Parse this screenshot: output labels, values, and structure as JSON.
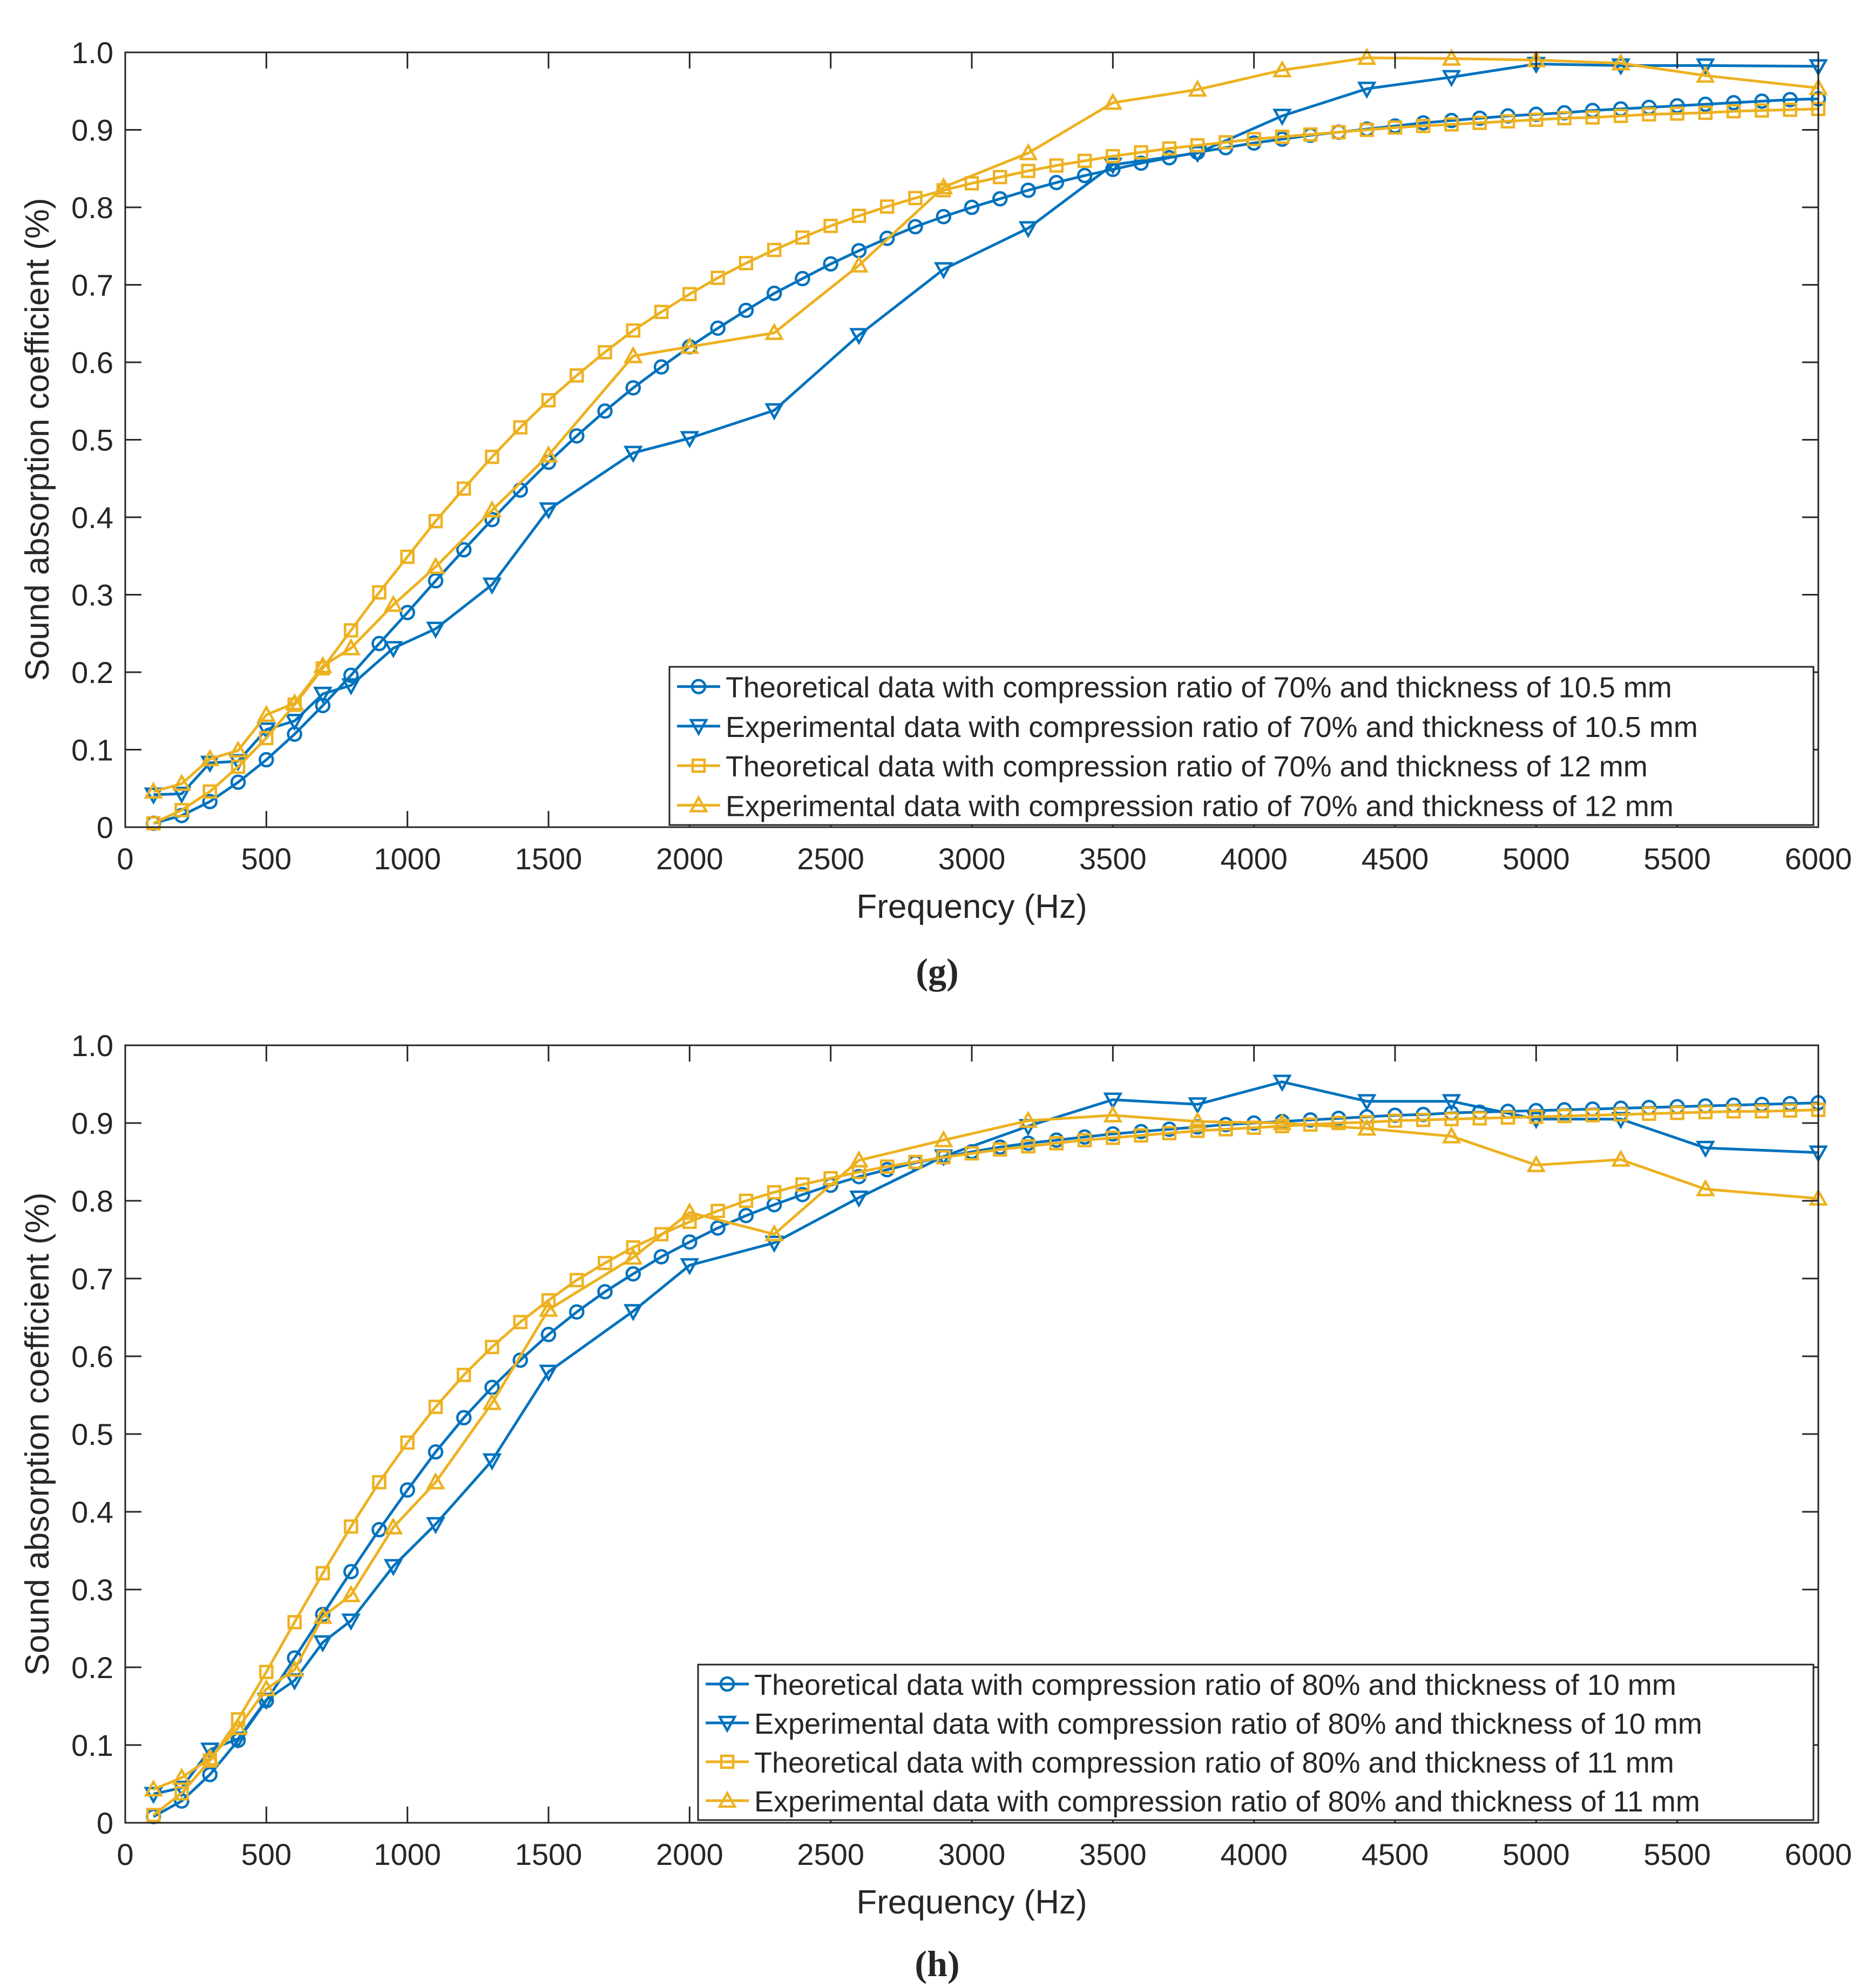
{
  "chart_data": [
    {
      "type": "line",
      "panel_label": "g",
      "title": "",
      "xlabel": "Frequency (Hz)",
      "ylabel": "Sound absorption coefficient (%)",
      "xlim": [
        0,
        6000
      ],
      "ylim": [
        0,
        1.0
      ],
      "xticks": [
        "0",
        "500",
        "1000",
        "1500",
        "2000",
        "2500",
        "3000",
        "3500",
        "4000",
        "4500",
        "5000",
        "5500",
        "6000"
      ],
      "yticks": [
        "0",
        "0.1",
        "0.2",
        "0.3",
        "0.4",
        "0.5",
        "0.6",
        "0.7",
        "0.8",
        "0.9",
        "1.0"
      ],
      "grid": false,
      "legend_position": "bottom-right",
      "series": [
        {
          "name": "Theoretical data with compression ratio of 70% and thickness of 10.5 mm",
          "color": "#0072BD",
          "marker": "circle",
          "x": [
            100,
            200,
            300,
            400,
            500,
            600,
            700,
            800,
            900,
            1000,
            1100,
            1200,
            1300,
            1400,
            1500,
            1600,
            1700,
            1800,
            1900,
            2000,
            2100,
            2200,
            2300,
            2400,
            2500,
            2600,
            2700,
            2800,
            2900,
            3000,
            3100,
            3200,
            3300,
            3400,
            3500,
            3600,
            3700,
            3800,
            3900,
            4000,
            4100,
            4200,
            4300,
            4400,
            4500,
            4600,
            4700,
            4800,
            4900,
            5000,
            5100,
            5200,
            5300,
            5400,
            5500,
            5600,
            5700,
            5800,
            5900,
            6000
          ],
          "y": [
            0.005,
            0.015,
            0.033,
            0.058,
            0.087,
            0.12,
            0.157,
            0.196,
            0.237,
            0.277,
            0.318,
            0.358,
            0.397,
            0.435,
            0.471,
            0.505,
            0.537,
            0.567,
            0.594,
            0.62,
            0.644,
            0.667,
            0.689,
            0.708,
            0.727,
            0.744,
            0.76,
            0.775,
            0.788,
            0.8,
            0.811,
            0.822,
            0.832,
            0.841,
            0.849,
            0.857,
            0.864,
            0.871,
            0.877,
            0.883,
            0.888,
            0.893,
            0.897,
            0.901,
            0.905,
            0.909,
            0.912,
            0.915,
            0.918,
            0.92,
            0.922,
            0.925,
            0.927,
            0.929,
            0.931,
            0.933,
            0.935,
            0.937,
            0.939,
            0.94
          ]
        },
        {
          "name": "Experimental data with compression ratio of 70% and thickness of 10.5 mm",
          "color": "#0072BD",
          "marker": "triangle-down",
          "x": [
            100,
            200,
            300,
            400,
            500,
            600,
            700,
            800,
            950,
            1100,
            1300,
            1500,
            1800,
            2000,
            2300,
            2600,
            2900,
            3200,
            3500,
            3800,
            4100,
            4400,
            4700,
            5000,
            5300,
            5600,
            6000
          ],
          "y": [
            0.042,
            0.043,
            0.083,
            0.085,
            0.126,
            0.137,
            0.172,
            0.183,
            0.231,
            0.256,
            0.313,
            0.41,
            0.483,
            0.502,
            0.538,
            0.635,
            0.72,
            0.773,
            0.855,
            0.87,
            0.918,
            0.953,
            0.968,
            0.985,
            0.983,
            0.983,
            0.982
          ]
        },
        {
          "name": "Theoretical data with compression ratio of 70% and thickness of 12 mm",
          "color": "#EDB120",
          "marker": "square",
          "x": [
            100,
            200,
            300,
            400,
            500,
            600,
            700,
            800,
            900,
            1000,
            1100,
            1200,
            1300,
            1400,
            1500,
            1600,
            1700,
            1800,
            1900,
            2000,
            2100,
            2200,
            2300,
            2400,
            2500,
            2600,
            2700,
            2800,
            2900,
            3000,
            3100,
            3200,
            3300,
            3400,
            3500,
            3600,
            3700,
            3800,
            3900,
            4000,
            4100,
            4200,
            4300,
            4400,
            4500,
            4600,
            4700,
            4800,
            4900,
            5000,
            5100,
            5200,
            5300,
            5400,
            5500,
            5600,
            5700,
            5800,
            5900,
            6000
          ],
          "y": [
            0.005,
            0.022,
            0.046,
            0.078,
            0.115,
            0.158,
            0.205,
            0.254,
            0.303,
            0.349,
            0.395,
            0.437,
            0.478,
            0.516,
            0.551,
            0.583,
            0.613,
            0.641,
            0.665,
            0.688,
            0.709,
            0.728,
            0.745,
            0.761,
            0.776,
            0.789,
            0.801,
            0.812,
            0.822,
            0.831,
            0.839,
            0.847,
            0.854,
            0.86,
            0.866,
            0.871,
            0.876,
            0.88,
            0.884,
            0.888,
            0.891,
            0.894,
            0.897,
            0.9,
            0.903,
            0.905,
            0.907,
            0.909,
            0.911,
            0.913,
            0.915,
            0.916,
            0.918,
            0.92,
            0.921,
            0.922,
            0.924,
            0.925,
            0.926,
            0.927
          ]
        },
        {
          "name": "Experimental data with compression ratio of 70% and thickness of 12 mm",
          "color": "#EDB120",
          "marker": "triangle-up",
          "x": [
            100,
            200,
            300,
            400,
            500,
            600,
            700,
            800,
            950,
            1100,
            1300,
            1500,
            1800,
            2000,
            2300,
            2600,
            2900,
            3200,
            3500,
            3800,
            4100,
            4400,
            4700,
            5000,
            5300,
            5600,
            6000
          ],
          "y": [
            0.046,
            0.056,
            0.088,
            0.099,
            0.145,
            0.16,
            0.208,
            0.231,
            0.287,
            0.336,
            0.409,
            0.48,
            0.608,
            0.62,
            0.638,
            0.725,
            0.826,
            0.87,
            0.935,
            0.952,
            0.977,
            0.993,
            0.992,
            0.99,
            0.986,
            0.97,
            0.954
          ]
        }
      ]
    },
    {
      "type": "line",
      "panel_label": "h",
      "title": "",
      "xlabel": "Frequency (Hz)",
      "ylabel": "Sound absorption coefficient (%)",
      "xlim": [
        0,
        6000
      ],
      "ylim": [
        0,
        1.0
      ],
      "xticks": [
        "0",
        "500",
        "1000",
        "1500",
        "2000",
        "2500",
        "3000",
        "3500",
        "4000",
        "4500",
        "5000",
        "5500",
        "6000"
      ],
      "yticks": [
        "0",
        "0.1",
        "0.2",
        "0.3",
        "0.4",
        "0.5",
        "0.6",
        "0.7",
        "0.8",
        "0.9",
        "1.0"
      ],
      "grid": false,
      "legend_position": "bottom-right",
      "series": [
        {
          "name": "Theoretical data with compression ratio of 80% and thickness of 10 mm",
          "color": "#0072BD",
          "marker": "circle",
          "x": [
            100,
            200,
            300,
            400,
            500,
            600,
            700,
            800,
            900,
            1000,
            1100,
            1200,
            1300,
            1400,
            1500,
            1600,
            1700,
            1800,
            1900,
            2000,
            2100,
            2200,
            2300,
            2400,
            2500,
            2600,
            2700,
            2800,
            2900,
            3000,
            3100,
            3200,
            3300,
            3400,
            3500,
            3600,
            3700,
            3800,
            3900,
            4000,
            4100,
            4200,
            4300,
            4400,
            4500,
            4600,
            4700,
            4800,
            4900,
            5000,
            5100,
            5200,
            5300,
            5400,
            5500,
            5600,
            5700,
            5800,
            5900,
            6000
          ],
          "y": [
            0.008,
            0.028,
            0.062,
            0.106,
            0.157,
            0.212,
            0.268,
            0.323,
            0.377,
            0.428,
            0.477,
            0.521,
            0.56,
            0.595,
            0.628,
            0.657,
            0.683,
            0.706,
            0.728,
            0.747,
            0.765,
            0.781,
            0.795,
            0.808,
            0.82,
            0.831,
            0.84,
            0.849,
            0.856,
            0.863,
            0.869,
            0.874,
            0.878,
            0.882,
            0.886,
            0.889,
            0.892,
            0.895,
            0.898,
            0.9,
            0.902,
            0.904,
            0.906,
            0.908,
            0.91,
            0.911,
            0.913,
            0.914,
            0.915,
            0.916,
            0.917,
            0.918,
            0.919,
            0.92,
            0.921,
            0.922,
            0.923,
            0.924,
            0.925,
            0.926
          ]
        },
        {
          "name": "Experimental data with compression ratio of 80% and thickness of 10 mm",
          "color": "#0072BD",
          "marker": "triangle-down",
          "x": [
            100,
            200,
            300,
            400,
            500,
            600,
            700,
            800,
            950,
            1100,
            1300,
            1500,
            1800,
            2000,
            2300,
            2600,
            2900,
            3200,
            3500,
            3800,
            4100,
            4400,
            4700,
            5000,
            5300,
            5600,
            6000
          ],
          "y": [
            0.037,
            0.045,
            0.094,
            0.108,
            0.158,
            0.183,
            0.232,
            0.26,
            0.33,
            0.384,
            0.466,
            0.58,
            0.658,
            0.717,
            0.746,
            0.804,
            0.857,
            0.896,
            0.93,
            0.924,
            0.953,
            0.928,
            0.928,
            0.905,
            0.905,
            0.868,
            0.862
          ]
        },
        {
          "name": "Theoretical data with compression ratio of 80% and thickness of 11 mm",
          "color": "#EDB120",
          "marker": "square",
          "x": [
            100,
            200,
            300,
            400,
            500,
            600,
            700,
            800,
            900,
            1000,
            1100,
            1200,
            1300,
            1400,
            1500,
            1600,
            1700,
            1800,
            1900,
            2000,
            2100,
            2200,
            2300,
            2400,
            2500,
            2600,
            2700,
            2800,
            2900,
            3000,
            3100,
            3200,
            3300,
            3400,
            3500,
            3600,
            3700,
            3800,
            3900,
            4000,
            4100,
            4200,
            4300,
            4400,
            4500,
            4600,
            4700,
            4800,
            4900,
            5000,
            5100,
            5200,
            5300,
            5400,
            5500,
            5600,
            5700,
            5800,
            5900,
            6000
          ],
          "y": [
            0.01,
            0.038,
            0.08,
            0.133,
            0.194,
            0.258,
            0.321,
            0.381,
            0.438,
            0.489,
            0.535,
            0.576,
            0.612,
            0.644,
            0.672,
            0.698,
            0.72,
            0.74,
            0.757,
            0.773,
            0.787,
            0.8,
            0.811,
            0.821,
            0.829,
            0.837,
            0.844,
            0.85,
            0.856,
            0.861,
            0.866,
            0.87,
            0.874,
            0.878,
            0.881,
            0.884,
            0.887,
            0.89,
            0.892,
            0.894,
            0.896,
            0.898,
            0.9,
            0.901,
            0.903,
            0.904,
            0.905,
            0.906,
            0.907,
            0.908,
            0.909,
            0.91,
            0.911,
            0.912,
            0.913,
            0.914,
            0.915,
            0.915,
            0.916,
            0.917
          ]
        },
        {
          "name": "Experimental data with compression ratio of 80% and thickness of 11 mm",
          "color": "#EDB120",
          "marker": "triangle-up",
          "x": [
            100,
            200,
            300,
            400,
            500,
            600,
            700,
            800,
            950,
            1100,
            1300,
            1500,
            1800,
            2000,
            2300,
            2600,
            2900,
            3200,
            3500,
            3800,
            4100,
            4400,
            4700,
            5000,
            5300,
            5600,
            6000
          ],
          "y": [
            0.043,
            0.058,
            0.083,
            0.122,
            0.172,
            0.197,
            0.265,
            0.293,
            0.38,
            0.438,
            0.54,
            0.66,
            0.727,
            0.785,
            0.757,
            0.852,
            0.878,
            0.903,
            0.91,
            0.902,
            0.9,
            0.893,
            0.883,
            0.846,
            0.853,
            0.815,
            0.803
          ]
        }
      ]
    }
  ]
}
